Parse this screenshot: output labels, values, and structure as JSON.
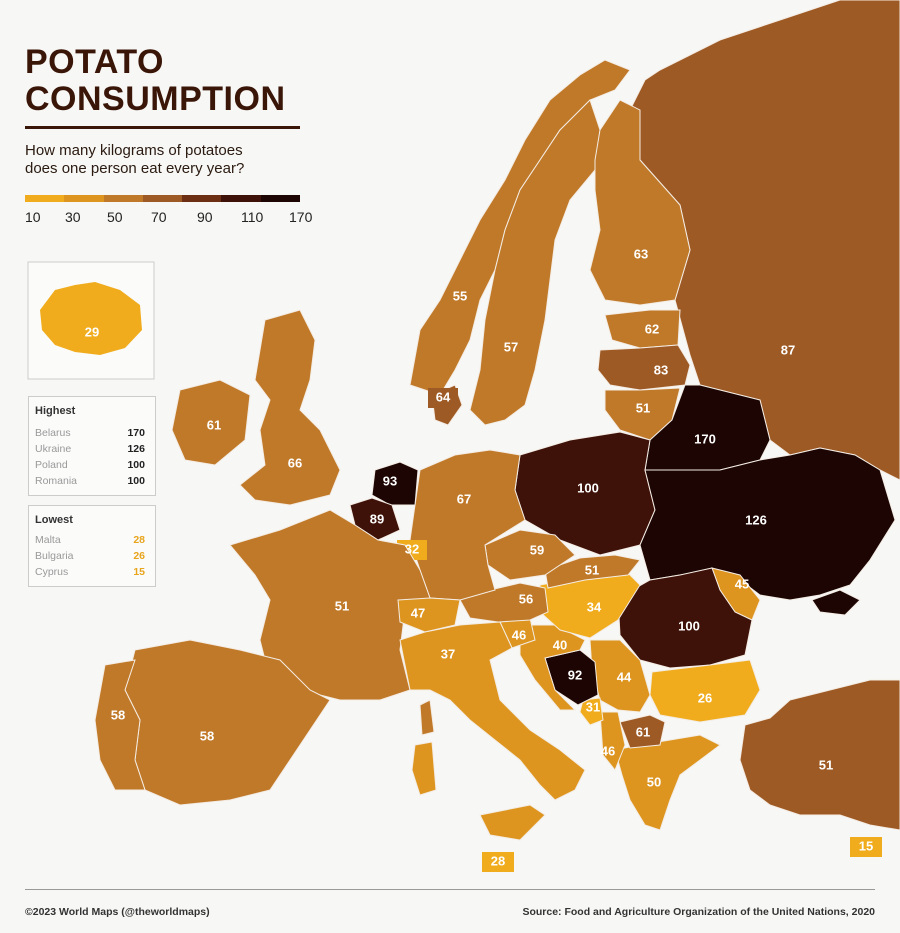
{
  "title_line1": "POTATO",
  "title_line2": "CONSUMPTION",
  "subtitle_line1": "How many kilograms of potatoes",
  "subtitle_line2": "does one person eat every year?",
  "legend": {
    "colors": [
      "#f0ac1c",
      "#dd951f",
      "#c07928",
      "#9e5a25",
      "#6d2f14",
      "#3e1209",
      "#1c0503"
    ],
    "ticks": [
      "10",
      "30",
      "50",
      "70",
      "90",
      "110",
      "170"
    ]
  },
  "iceland_value": "29",
  "highest": {
    "heading": "Highest",
    "rows": [
      {
        "name": "Belarus",
        "value": "170"
      },
      {
        "name": "Ukraine",
        "value": "126"
      },
      {
        "name": "Poland",
        "value": "100"
      },
      {
        "name": "Romania",
        "value": "100"
      }
    ]
  },
  "lowest": {
    "heading": "Lowest",
    "rows": [
      {
        "name": "Malta",
        "value": "28"
      },
      {
        "name": "Bulgaria",
        "value": "26"
      },
      {
        "name": "Cyprus",
        "value": "15"
      }
    ]
  },
  "country_values": {
    "russia": "87",
    "finland": "63",
    "sweden": "57",
    "norway": "55",
    "estonia": "62",
    "latvia": "83",
    "lithuania": "51",
    "belarus": "170",
    "poland": "100",
    "ukraine": "126",
    "moldova": "45",
    "romania": "100",
    "hungary": "34",
    "slovakia": "51",
    "czechia": "59",
    "austria": "56",
    "germany": "67",
    "denmark": "64",
    "netherlands": "93",
    "belgium": "89",
    "luxembourg": "32",
    "france": "51",
    "switzerland": "47",
    "italy": "37",
    "slovenia": "46",
    "croatia": "40",
    "bosnia": "92",
    "serbia": "44",
    "montenegro": "31",
    "albania": "46",
    "north_macedonia": "61",
    "greece": "50",
    "bulgaria": "26",
    "turkey": "51",
    "spain": "58",
    "portugal": "58",
    "ireland": "61",
    "united_kingdom": "66",
    "malta": "28",
    "cyprus": "15"
  },
  "footer_left": "©2023 World Maps (@theworldmaps)",
  "footer_right": "Source: Food and Agriculture Organization of the United Nations, 2020"
}
